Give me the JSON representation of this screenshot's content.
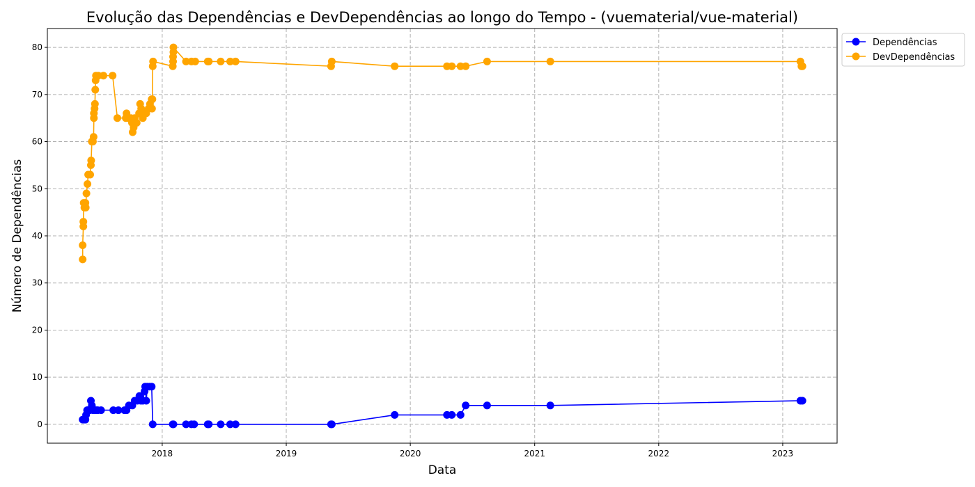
{
  "chart_data": {
    "type": "line",
    "title": "Evolução das Dependências e DevDependências ao longo do Tempo - (vuematerial/vue-material)",
    "xlabel": "Data",
    "ylabel": "Número de Dependências",
    "xlim": [
      "2017-01-28",
      "2023-06-10"
    ],
    "ylim": [
      -4,
      84
    ],
    "x_ticks": [
      "2018",
      "2019",
      "2020",
      "2021",
      "2022",
      "2023"
    ],
    "y_ticks": [
      0,
      10,
      20,
      30,
      40,
      50,
      60,
      70,
      80
    ],
    "grid": true,
    "legend_position": "outside-top-right",
    "series": [
      {
        "name": "Dependências",
        "color": "#0000ff",
        "points": [
          [
            "2017-05-12",
            1
          ],
          [
            "2017-05-15",
            1
          ],
          [
            "2017-05-18",
            1
          ],
          [
            "2017-05-20",
            1
          ],
          [
            "2017-05-22",
            2
          ],
          [
            "2017-05-25",
            3
          ],
          [
            "2017-05-28",
            3
          ],
          [
            "2017-06-02",
            3
          ],
          [
            "2017-06-05",
            5
          ],
          [
            "2017-06-08",
            4
          ],
          [
            "2017-06-12",
            3
          ],
          [
            "2017-06-15",
            3
          ],
          [
            "2017-06-20",
            3
          ],
          [
            "2017-06-25",
            3
          ],
          [
            "2017-07-05",
            3
          ],
          [
            "2017-08-10",
            3
          ],
          [
            "2017-08-25",
            3
          ],
          [
            "2017-09-12",
            3
          ],
          [
            "2017-09-18",
            3
          ],
          [
            "2017-09-25",
            4
          ],
          [
            "2017-10-05",
            4
          ],
          [
            "2017-10-12",
            5
          ],
          [
            "2017-10-20",
            5
          ],
          [
            "2017-10-26",
            6
          ],
          [
            "2017-10-30",
            5
          ],
          [
            "2017-11-05",
            5
          ],
          [
            "2017-11-10",
            7
          ],
          [
            "2017-11-12",
            8
          ],
          [
            "2017-11-15",
            5
          ],
          [
            "2017-11-18",
            8
          ],
          [
            "2017-11-25",
            8
          ],
          [
            "2017-12-01",
            8
          ],
          [
            "2017-12-04",
            0
          ],
          [
            "2018-02-01",
            0
          ],
          [
            "2018-02-03",
            0
          ],
          [
            "2018-03-12",
            0
          ],
          [
            "2018-03-28",
            0
          ],
          [
            "2018-04-05",
            0
          ],
          [
            "2018-05-15",
            0
          ],
          [
            "2018-05-18",
            0
          ],
          [
            "2018-06-22",
            0
          ],
          [
            "2018-07-20",
            0
          ],
          [
            "2018-08-05",
            0
          ],
          [
            "2019-05-13",
            0
          ],
          [
            "2019-05-15",
            0
          ],
          [
            "2019-11-16",
            2
          ],
          [
            "2020-04-18",
            2
          ],
          [
            "2020-05-02",
            2
          ],
          [
            "2020-05-28",
            2
          ],
          [
            "2020-06-12",
            4
          ],
          [
            "2020-08-14",
            4
          ],
          [
            "2021-02-16",
            4
          ],
          [
            "2023-02-22",
            5
          ],
          [
            "2023-02-28",
            5
          ]
        ]
      },
      {
        "name": "DevDependências",
        "color": "#ffa500",
        "points": [
          [
            "2017-05-12",
            35
          ],
          [
            "2017-05-12",
            38
          ],
          [
            "2017-05-14",
            42
          ],
          [
            "2017-05-14",
            43
          ],
          [
            "2017-05-15",
            47
          ],
          [
            "2017-05-17",
            46
          ],
          [
            "2017-05-20",
            47
          ],
          [
            "2017-05-21",
            46
          ],
          [
            "2017-05-23",
            49
          ],
          [
            "2017-05-26",
            51
          ],
          [
            "2017-05-28",
            53
          ],
          [
            "2017-06-03",
            53
          ],
          [
            "2017-06-05",
            55
          ],
          [
            "2017-06-06",
            56
          ],
          [
            "2017-06-08",
            60
          ],
          [
            "2017-06-11",
            60
          ],
          [
            "2017-06-13",
            61
          ],
          [
            "2017-06-14",
            65
          ],
          [
            "2017-06-14",
            66
          ],
          [
            "2017-06-16",
            67
          ],
          [
            "2017-06-17",
            68
          ],
          [
            "2017-06-18",
            71
          ],
          [
            "2017-06-19",
            73
          ],
          [
            "2017-06-20",
            74
          ],
          [
            "2017-06-27",
            74
          ],
          [
            "2017-07-12",
            74
          ],
          [
            "2017-08-08",
            74
          ],
          [
            "2017-08-22",
            65
          ],
          [
            "2017-09-16",
            65
          ],
          [
            "2017-09-18",
            66
          ],
          [
            "2017-09-23",
            65
          ],
          [
            "2017-10-01",
            65
          ],
          [
            "2017-10-04",
            64
          ],
          [
            "2017-10-06",
            62
          ],
          [
            "2017-10-09",
            63
          ],
          [
            "2017-10-12",
            65
          ],
          [
            "2017-10-18",
            64
          ],
          [
            "2017-10-25",
            66
          ],
          [
            "2017-10-28",
            68
          ],
          [
            "2017-10-31",
            67
          ],
          [
            "2017-11-05",
            65
          ],
          [
            "2017-11-10",
            66
          ],
          [
            "2017-11-15",
            66
          ],
          [
            "2017-11-22",
            67
          ],
          [
            "2017-11-26",
            68
          ],
          [
            "2017-12-01",
            69
          ],
          [
            "2017-12-02",
            67
          ],
          [
            "2017-12-03",
            69
          ],
          [
            "2017-12-04",
            76
          ],
          [
            "2017-12-05",
            77
          ],
          [
            "2018-02-01",
            76
          ],
          [
            "2018-02-02",
            77
          ],
          [
            "2018-02-02",
            78
          ],
          [
            "2018-02-03",
            79
          ],
          [
            "2018-02-03",
            80
          ],
          [
            "2018-03-12",
            77
          ],
          [
            "2018-03-28",
            77
          ],
          [
            "2018-04-08",
            77
          ],
          [
            "2018-05-15",
            77
          ],
          [
            "2018-05-18",
            77
          ],
          [
            "2018-06-22",
            77
          ],
          [
            "2018-07-20",
            77
          ],
          [
            "2018-08-05",
            77
          ],
          [
            "2019-05-13",
            76
          ],
          [
            "2019-05-15",
            77
          ],
          [
            "2019-11-16",
            76
          ],
          [
            "2020-04-18",
            76
          ],
          [
            "2020-05-02",
            76
          ],
          [
            "2020-05-28",
            76
          ],
          [
            "2020-06-12",
            76
          ],
          [
            "2020-08-14",
            77
          ],
          [
            "2021-02-16",
            77
          ],
          [
            "2023-02-22",
            77
          ],
          [
            "2023-02-25",
            76
          ],
          [
            "2023-02-28",
            76
          ]
        ]
      }
    ]
  }
}
